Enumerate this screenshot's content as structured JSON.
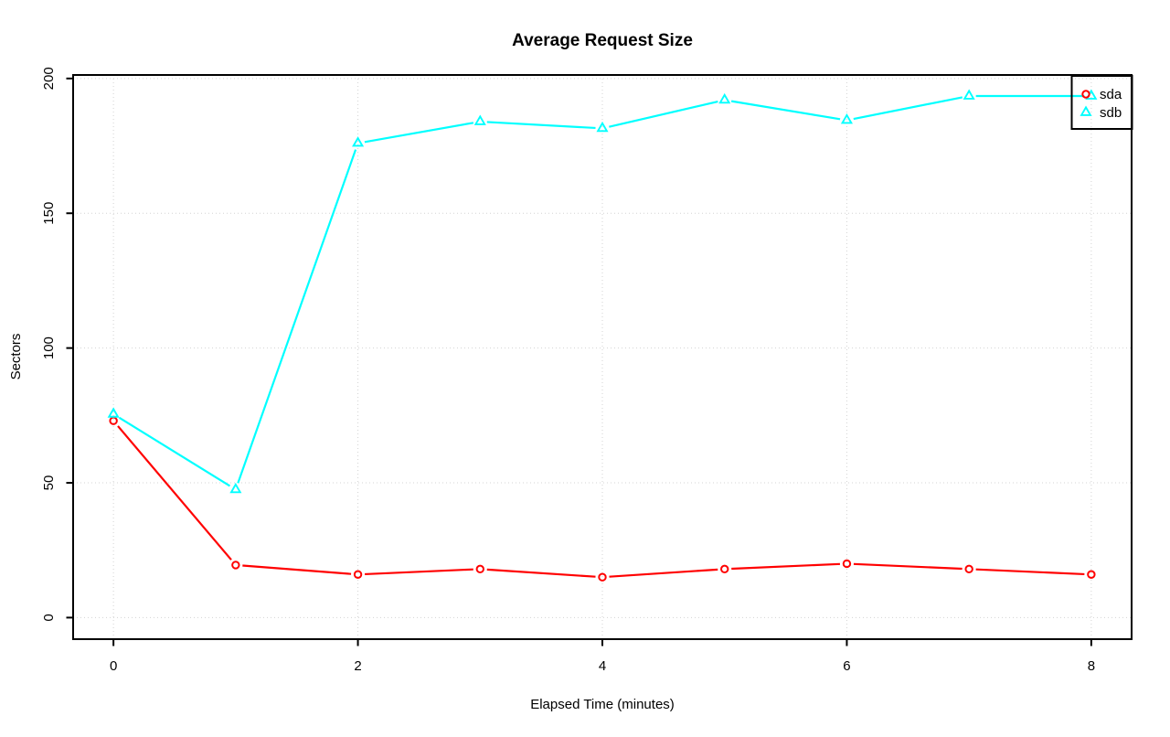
{
  "page": {
    "background": "#FFFFFF"
  },
  "chart_data": {
    "type": "line",
    "title": "Average Request Size",
    "xlabel": "Elapsed Time (minutes)",
    "ylabel": "Sectors",
    "x": [
      0,
      1,
      2,
      3,
      4,
      5,
      6,
      7,
      8
    ],
    "series": [
      {
        "name": "sda",
        "color": "#FF0000",
        "marker": "circle",
        "values": [
          73,
          19.5,
          16,
          18,
          15,
          18,
          20,
          18,
          16
        ]
      },
      {
        "name": "sdb",
        "color": "#00FFFF",
        "marker": "triangle",
        "values": [
          75.5,
          47.5,
          176,
          184,
          181.5,
          192,
          184.5,
          193.5,
          193.5
        ]
      }
    ],
    "xticks": [
      0,
      2,
      4,
      6,
      8
    ],
    "yticks": [
      0,
      50,
      100,
      150,
      200
    ],
    "xlim": [
      -0.33,
      8.33
    ],
    "ylim": [
      -8,
      201.3
    ],
    "grid": "dotted",
    "grid_color": "#D3D3D3",
    "axis_color": "#000000",
    "text_color": "#000000",
    "line_style": "points-with-line-breaks",
    "legend": {
      "position": "topright",
      "items": [
        {
          "label": "sda",
          "marker": "circle",
          "color": "#FF0000"
        },
        {
          "label": "sdb",
          "marker": "triangle",
          "color": "#00FFFF"
        }
      ]
    }
  }
}
